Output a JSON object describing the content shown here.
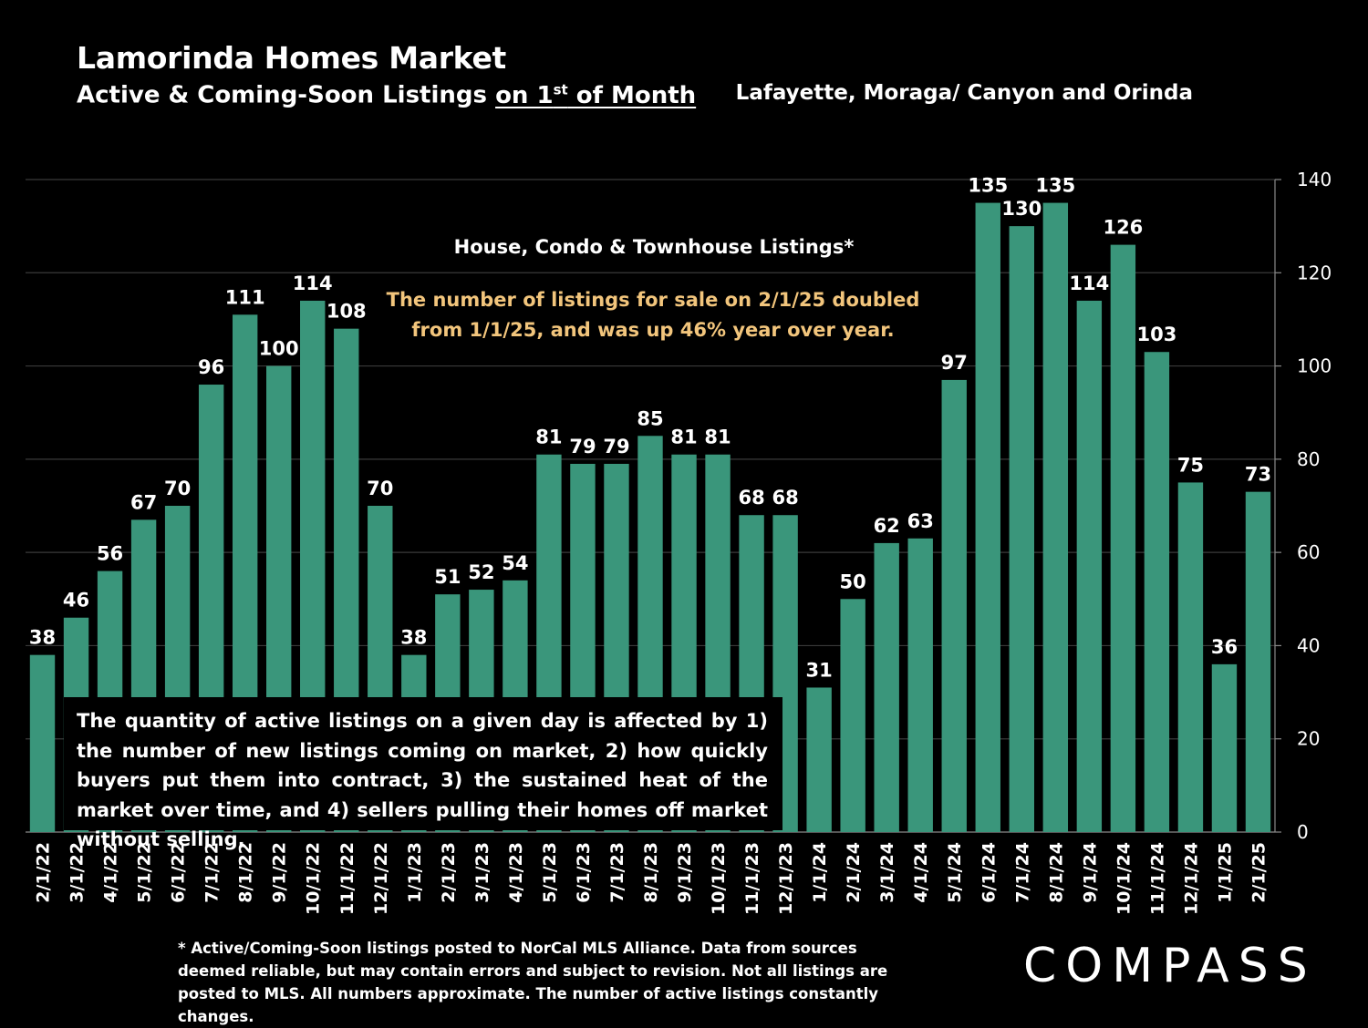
{
  "header": {
    "title": "Lamorinda Homes Market",
    "subtitle_prefix": "Active & Coming-Soon Listings ",
    "subtitle_underlined": "on 1",
    "subtitle_sup": "st",
    "subtitle_suffix": " of Month",
    "region": "Lafayette, Moraga/ Canyon and Orinda"
  },
  "annotations": {
    "series_label": "House, Condo & Townhouse Listings*",
    "highlight_line1": "The number of listings for sale on 2/1/25 doubled",
    "highlight_line2": "from 1/1/25, and was up 46% year over year.",
    "note_box": "The quantity of active listings on a given day is affected by 1) the number of new listings coming on market, 2) how quickly buyers put them into contract, 3) the sustained heat of the market over time, and 4) sellers pulling their homes off market without selling."
  },
  "footnote": "* Active/Coming-Soon listings posted to NorCal MLS Alliance.  Data from sources deemed reliable, but may contain errors and subject to revision.  Not all listings are posted to MLS. All numbers approximate. The number of active listings constantly changes.",
  "logo": "COMPASS",
  "colors": {
    "bar": "#3a967b",
    "background": "#000000",
    "text": "#ffffff",
    "highlight": "#f2c57c",
    "grid": "#3a3a3a"
  },
  "chart_data": {
    "type": "bar",
    "categories": [
      "2/1/22",
      "3/1/22",
      "4/1/22",
      "5/1/22",
      "6/1/22",
      "7/1/22",
      "8/1/22",
      "9/1/22",
      "10/1/22",
      "11/1/22",
      "12/1/22",
      "1/1/23",
      "2/1/23",
      "3/1/23",
      "4/1/23",
      "5/1/23",
      "6/1/23",
      "7/1/23",
      "8/1/23",
      "9/1/23",
      "10/1/23",
      "11/1/23",
      "12/1/23",
      "1/1/24",
      "2/1/24",
      "3/1/24",
      "4/1/24",
      "5/1/24",
      "6/1/24",
      "7/1/24",
      "8/1/24",
      "9/1/24",
      "10/1/24",
      "11/1/24",
      "12/1/24",
      "1/1/25",
      "2/1/25"
    ],
    "values": [
      38,
      46,
      56,
      67,
      70,
      96,
      111,
      100,
      114,
      108,
      70,
      38,
      51,
      52,
      54,
      81,
      79,
      79,
      85,
      81,
      81,
      68,
      68,
      31,
      50,
      62,
      63,
      97,
      135,
      130,
      135,
      114,
      126,
      103,
      75,
      36,
      73
    ],
    "y_ticks": [
      0,
      20,
      40,
      60,
      80,
      100,
      120,
      140
    ],
    "ylim": [
      0,
      140
    ],
    "y_axis_side": "right",
    "grid": true,
    "data_labels": true
  }
}
